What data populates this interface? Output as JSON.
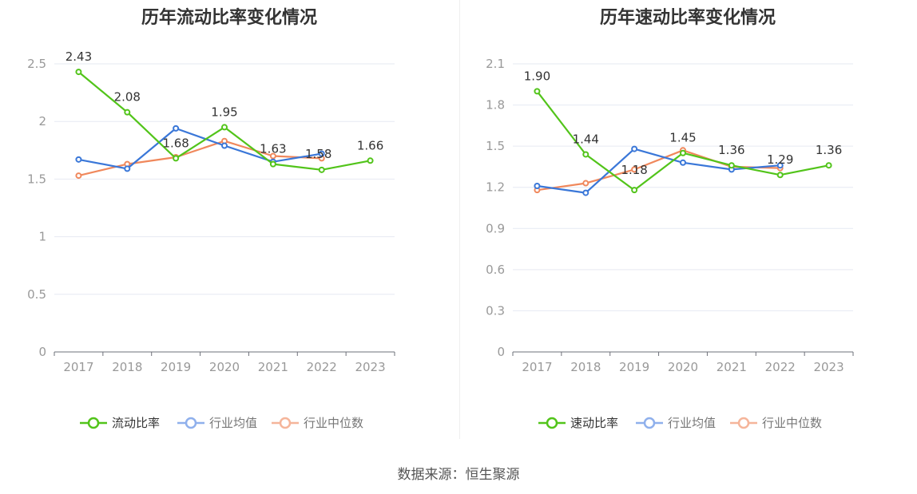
{
  "source": "数据来源：恒生聚源",
  "chart_data": [
    {
      "type": "line",
      "title": "历年流动比率变化情况",
      "categories": [
        "2017",
        "2018",
        "2019",
        "2020",
        "2021",
        "2022",
        "2023"
      ],
      "yticks": [
        "0",
        "0.5",
        "1",
        "1.5",
        "2",
        "2.5"
      ],
      "ylim": [
        0,
        2.5
      ],
      "grid": true,
      "legend_position": "bottom",
      "series": [
        {
          "name": "流动比率",
          "color": "#52c41a",
          "values": [
            2.43,
            2.08,
            1.68,
            1.95,
            1.63,
            1.58,
            1.66
          ],
          "labels": [
            "2.43",
            "2.08",
            "1.68",
            "1.95",
            "1.63",
            "1.58",
            "1.66"
          ]
        },
        {
          "name": "行业均值",
          "color": "#3a77d8",
          "values": [
            1.67,
            1.59,
            1.94,
            1.79,
            1.65,
            1.72,
            null
          ]
        },
        {
          "name": "行业中位数",
          "color": "#f0885c",
          "values": [
            1.53,
            1.63,
            1.69,
            1.83,
            1.7,
            1.68,
            null
          ]
        }
      ]
    },
    {
      "type": "line",
      "title": "历年速动比率变化情况",
      "categories": [
        "2017",
        "2018",
        "2019",
        "2020",
        "2021",
        "2022",
        "2023"
      ],
      "yticks": [
        "0",
        "0.3",
        "0.6",
        "0.9",
        "1.2",
        "1.5",
        "1.8",
        "2.1"
      ],
      "ylim": [
        0,
        2.1
      ],
      "grid": true,
      "legend_position": "bottom",
      "series": [
        {
          "name": "速动比率",
          "color": "#52c41a",
          "values": [
            1.9,
            1.44,
            1.18,
            1.45,
            1.36,
            1.29,
            1.36
          ],
          "labels": [
            "1.90",
            "1.44",
            "1.18",
            "1.45",
            "1.36",
            "1.29",
            "1.36"
          ]
        },
        {
          "name": "行业均值",
          "color": "#3a77d8",
          "values": [
            1.21,
            1.16,
            1.48,
            1.38,
            1.33,
            1.36,
            null
          ]
        },
        {
          "name": "行业中位数",
          "color": "#f0885c",
          "values": [
            1.18,
            1.23,
            1.33,
            1.47,
            1.35,
            1.34,
            null
          ]
        }
      ]
    }
  ]
}
